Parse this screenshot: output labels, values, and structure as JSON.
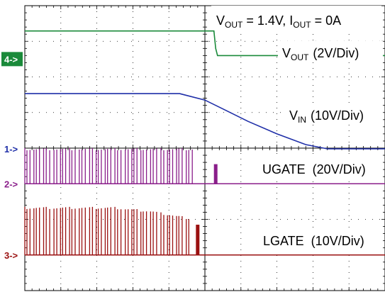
{
  "chart_data": {
    "type": "line",
    "title": "",
    "xlabel": "",
    "ylabel": "",
    "grid": true,
    "x_divisions": 10,
    "y_divisions": 8,
    "x_range": [
      0,
      10
    ],
    "y_range": [
      0,
      8
    ],
    "annotations": {
      "condition": {
        "v_main": "V",
        "v_sub": "OUT",
        "v_value": " = 1.4V,  ",
        "i_main": "I",
        "i_sub": "OUT",
        "i_value": " = 0A"
      },
      "vout": {
        "main": "V",
        "sub": "OUT",
        "scale": "(2V/Div)"
      },
      "vin": {
        "main": "V",
        "sub": "IN",
        "scale": "(10V/Div)"
      },
      "ugate": {
        "text": "UGATE  (20V/Div)"
      },
      "lgate": {
        "text": "LGATE  (10V/Div)"
      }
    },
    "markers": [
      {
        "label": "4->",
        "level": 6.5,
        "color": "#1a8a3a",
        "boxed": true
      },
      {
        "label": "1->",
        "level": 3.98,
        "color": "#1f2fa8",
        "boxed": false
      },
      {
        "label": "2->",
        "level": 3.0,
        "color": "#8a1e8a",
        "boxed": false
      },
      {
        "label": "3->",
        "level": 1.0,
        "color": "#9a1010",
        "boxed": false
      }
    ],
    "series": [
      {
        "name": "VOUT",
        "color": "#1a8a3a",
        "kind": "line",
        "points": [
          [
            0,
            7.29
          ],
          [
            2.6,
            7.29
          ],
          [
            5.25,
            7.29
          ],
          [
            5.3,
            6.8
          ],
          [
            5.35,
            6.6
          ],
          [
            10,
            6.6
          ]
        ]
      },
      {
        "name": "VIN",
        "color": "#1f2fa8",
        "kind": "line",
        "points": [
          [
            0,
            5.53
          ],
          [
            4.3,
            5.53
          ],
          [
            5.0,
            5.35
          ],
          [
            5.5,
            5.1
          ],
          [
            6.2,
            4.75
          ],
          [
            7.0,
            4.4
          ],
          [
            7.8,
            4.1
          ],
          [
            8.4,
            3.98
          ],
          [
            10,
            3.98
          ]
        ]
      },
      {
        "name": "UGATE",
        "color": "#8a1e8a",
        "kind": "switching",
        "baseline": 3.0,
        "top": 4.0,
        "start": 0.0,
        "end": 4.7,
        "pulse": {
          "x": 5.25,
          "height": 0.55
        },
        "tail": 10
      },
      {
        "name": "LGATE",
        "color": "#9a1010",
        "kind": "switching",
        "baseline": 1.0,
        "top": 2.35,
        "top_envelope": [
          [
            0,
            2.35
          ],
          [
            2.5,
            2.35
          ],
          [
            3.5,
            2.25
          ],
          [
            4.3,
            2.1
          ],
          [
            4.6,
            2.05
          ]
        ],
        "start": 0.0,
        "end": 4.6,
        "pulse": {
          "x": 4.75,
          "height": 0.85
        },
        "tail": 10
      }
    ]
  }
}
